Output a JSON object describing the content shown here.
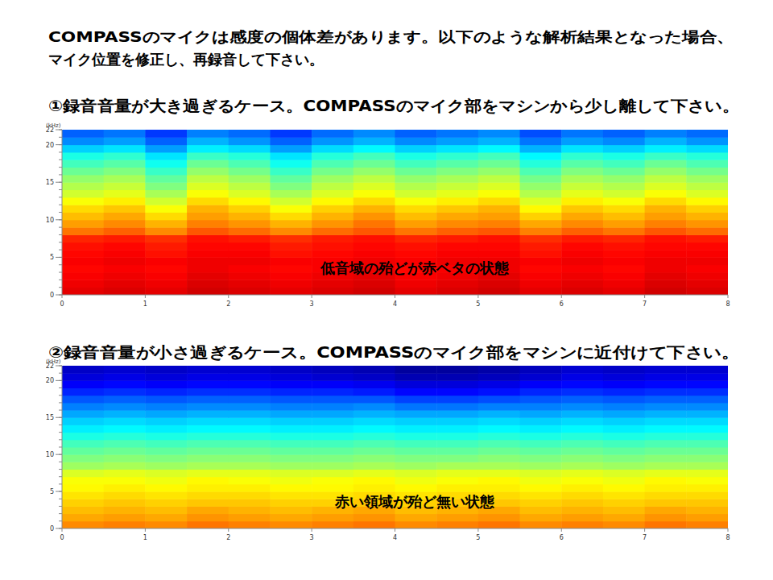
{
  "header": {
    "lines": [
      "COMPASSのマイクは感度の個体差があります。以下のような解析結果となった場合、",
      "マイク位置を修正し、再録音して下さい。"
    ]
  },
  "chart_data": [
    {
      "type": "heatmap",
      "title": "①録音音量が大き過ぎるケース。COMPASSのマイク部をマシンから少し離して下さい。",
      "annotation": "低音域の殆どが赤ベタの状態",
      "y_label": "(kHz)",
      "xlim": [
        0,
        8
      ],
      "xticks": [
        0,
        1,
        2,
        3,
        4,
        5,
        6,
        7,
        8
      ],
      "ylim": [
        0,
        22
      ],
      "yticks": [
        0,
        5,
        10,
        15,
        20,
        22
      ],
      "x": [
        0,
        0.5,
        1,
        1.5,
        2,
        2.5,
        3,
        3.5,
        4,
        4.5,
        5,
        5.5,
        6,
        6.5,
        7,
        7.5,
        8
      ],
      "y": [
        0,
        1,
        2,
        3,
        4,
        5,
        6,
        7,
        8,
        9,
        10,
        11,
        12,
        13,
        14,
        15,
        16,
        17,
        18,
        19,
        20,
        21,
        22
      ],
      "color_range": [
        0,
        100
      ],
      "cells": [
        [
          90,
          91,
          90,
          92,
          91,
          90,
          91,
          92,
          90,
          91,
          92,
          90,
          91,
          90,
          92,
          91
        ],
        [
          89,
          90,
          89,
          91,
          90,
          89,
          90,
          91,
          89,
          90,
          91,
          89,
          90,
          89,
          91,
          90
        ],
        [
          88,
          89,
          88,
          90,
          89,
          88,
          89,
          90,
          88,
          89,
          90,
          88,
          89,
          88,
          90,
          89
        ],
        [
          87,
          88,
          87,
          89,
          88,
          87,
          88,
          89,
          87,
          88,
          89,
          87,
          88,
          87,
          89,
          88
        ],
        [
          88,
          89,
          88,
          89,
          89,
          88,
          88,
          89,
          88,
          89,
          89,
          88,
          89,
          88,
          89,
          89
        ],
        [
          87,
          88,
          86,
          88,
          88,
          86,
          87,
          88,
          87,
          88,
          88,
          86,
          88,
          87,
          88,
          88
        ],
        [
          86,
          87,
          85,
          87,
          87,
          85,
          86,
          87,
          86,
          87,
          87,
          85,
          87,
          86,
          87,
          87
        ],
        [
          84,
          85,
          83,
          86,
          85,
          83,
          85,
          86,
          84,
          85,
          86,
          83,
          85,
          84,
          86,
          85
        ],
        [
          76,
          78,
          74,
          79,
          77,
          74,
          77,
          79,
          76,
          78,
          79,
          75,
          78,
          76,
          79,
          77
        ],
        [
          72,
          74,
          70,
          75,
          73,
          70,
          73,
          76,
          72,
          74,
          75,
          71,
          74,
          72,
          75,
          73
        ],
        [
          69,
          71,
          66,
          72,
          70,
          66,
          70,
          73,
          69,
          71,
          72,
          67,
          71,
          69,
          72,
          70
        ],
        [
          66,
          68,
          62,
          70,
          67,
          62,
          67,
          70,
          66,
          68,
          70,
          63,
          68,
          66,
          70,
          67
        ],
        [
          62,
          64,
          58,
          66,
          63,
          58,
          63,
          66,
          62,
          64,
          66,
          59,
          64,
          62,
          66,
          63
        ],
        [
          58,
          60,
          54,
          62,
          59,
          54,
          59,
          62,
          58,
          60,
          62,
          55,
          60,
          58,
          62,
          59
        ],
        [
          55,
          57,
          50,
          59,
          56,
          50,
          56,
          59,
          55,
          57,
          59,
          52,
          57,
          55,
          59,
          56
        ],
        [
          52,
          54,
          47,
          56,
          53,
          47,
          53,
          56,
          52,
          54,
          56,
          49,
          54,
          52,
          56,
          53
        ],
        [
          48,
          50,
          43,
          52,
          49,
          43,
          49,
          52,
          48,
          50,
          52,
          45,
          50,
          48,
          52,
          49
        ],
        [
          44,
          46,
          39,
          48,
          45,
          39,
          45,
          48,
          44,
          46,
          48,
          41,
          46,
          44,
          48,
          45
        ],
        [
          40,
          42,
          35,
          43,
          41,
          35,
          41,
          44,
          40,
          42,
          44,
          37,
          42,
          40,
          43,
          41
        ],
        [
          33,
          35,
          28,
          36,
          34,
          28,
          34,
          37,
          33,
          35,
          37,
          30,
          35,
          33,
          36,
          34
        ],
        [
          26,
          28,
          22,
          30,
          27,
          22,
          27,
          30,
          26,
          28,
          30,
          24,
          28,
          26,
          30,
          27
        ],
        [
          22,
          24,
          18,
          25,
          23,
          18,
          23,
          26,
          22,
          24,
          26,
          20,
          24,
          22,
          25,
          23
        ]
      ]
    },
    {
      "type": "heatmap",
      "title": "②録音音量が小さ過ぎるケース。COMPASSのマイク部をマシンに近付けて下さい。",
      "annotation": "赤い領域が殆ど無い状態",
      "y_label": "(kHz)",
      "xlim": [
        0,
        8
      ],
      "xticks": [
        0,
        1,
        2,
        3,
        4,
        5,
        6,
        7,
        8
      ],
      "ylim": [
        0,
        22
      ],
      "yticks": [
        0,
        5,
        10,
        15,
        20,
        22
      ],
      "x": [
        0,
        0.5,
        1,
        1.5,
        2,
        2.5,
        3,
        3.5,
        4,
        4.5,
        5,
        5.5,
        6,
        6.5,
        7,
        7.5,
        8
      ],
      "y": [
        0,
        1,
        2,
        3,
        4,
        5,
        6,
        7,
        8,
        9,
        10,
        11,
        12,
        13,
        14,
        15,
        16,
        17,
        18,
        19,
        20,
        21,
        22
      ],
      "color_range": [
        0,
        100
      ],
      "cells": [
        [
          74,
          75,
          74,
          76,
          75,
          74,
          75,
          76,
          74,
          75,
          76,
          74,
          75,
          74,
          76,
          75
        ],
        [
          71,
          72,
          71,
          73,
          72,
          71,
          72,
          73,
          71,
          72,
          73,
          71,
          72,
          71,
          73,
          72
        ],
        [
          69,
          70,
          69,
          71,
          70,
          69,
          70,
          71,
          69,
          70,
          71,
          69,
          70,
          69,
          71,
          70
        ],
        [
          67,
          68,
          67,
          68,
          68,
          67,
          67,
          68,
          67,
          68,
          68,
          67,
          68,
          67,
          68,
          68
        ],
        [
          65,
          66,
          65,
          66,
          66,
          65,
          65,
          66,
          65,
          66,
          66,
          65,
          66,
          65,
          66,
          66
        ],
        [
          63,
          64,
          63,
          64,
          64,
          63,
          63,
          64,
          63,
          64,
          64,
          63,
          64,
          63,
          64,
          64
        ],
        [
          62,
          62,
          61,
          63,
          62,
          61,
          62,
          63,
          61,
          62,
          63,
          61,
          62,
          61,
          63,
          62
        ],
        [
          59,
          60,
          59,
          60,
          60,
          59,
          59,
          60,
          59,
          60,
          60,
          59,
          60,
          59,
          60,
          60
        ],
        [
          53,
          54,
          53,
          54,
          54,
          53,
          53,
          54,
          53,
          54,
          54,
          53,
          54,
          53,
          54,
          54
        ],
        [
          50,
          51,
          50,
          51,
          51,
          50,
          50,
          51,
          50,
          50,
          51,
          50,
          51,
          50,
          51,
          51
        ],
        [
          47,
          48,
          47,
          48,
          48,
          47,
          47,
          48,
          47,
          47,
          48,
          47,
          48,
          47,
          48,
          48
        ],
        [
          44,
          45,
          44,
          45,
          45,
          44,
          44,
          45,
          44,
          44,
          45,
          44,
          45,
          44,
          45,
          45
        ],
        [
          40,
          41,
          40,
          41,
          41,
          40,
          40,
          41,
          40,
          40,
          41,
          40,
          41,
          40,
          41,
          41
        ],
        [
          36,
          37,
          36,
          37,
          37,
          36,
          36,
          37,
          36,
          36,
          37,
          36,
          37,
          36,
          37,
          37
        ],
        [
          33,
          34,
          33,
          34,
          34,
          33,
          33,
          34,
          33,
          33,
          34,
          33,
          34,
          33,
          34,
          34
        ],
        [
          29,
          30,
          29,
          30,
          30,
          29,
          29,
          30,
          29,
          29,
          30,
          29,
          30,
          29,
          30,
          30
        ],
        [
          25,
          26,
          25,
          26,
          26,
          25,
          25,
          26,
          24,
          24,
          25,
          25,
          26,
          25,
          26,
          26
        ],
        [
          21,
          22,
          21,
          22,
          22,
          21,
          21,
          21,
          19,
          19,
          20,
          21,
          22,
          21,
          22,
          22
        ],
        [
          16,
          17,
          16,
          17,
          17,
          16,
          16,
          15,
          13,
          13,
          14,
          16,
          17,
          16,
          17,
          17
        ],
        [
          12,
          13,
          12,
          13,
          13,
          12,
          12,
          11,
          9,
          9,
          10,
          12,
          13,
          12,
          13,
          13
        ],
        [
          9,
          10,
          9,
          10,
          10,
          9,
          8,
          7,
          5,
          5,
          6,
          8,
          10,
          9,
          10,
          10
        ],
        [
          7,
          8,
          7,
          8,
          8,
          7,
          6,
          5,
          3,
          3,
          4,
          6,
          8,
          7,
          8,
          8
        ]
      ]
    }
  ]
}
